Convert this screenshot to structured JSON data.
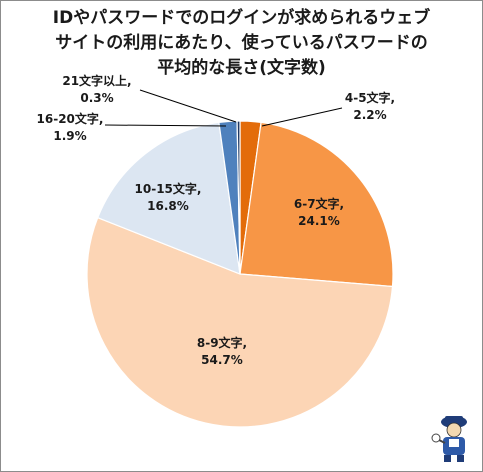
{
  "chart_data": {
    "type": "pie",
    "title_lines": [
      "IDやパスワードでのログインが求められるウェブ",
      "サイトの利用にあたり、使っているパスワードの",
      "平均的な長さ(文字数)"
    ],
    "slices": [
      {
        "name": "4-5文字",
        "value": 2.2,
        "value_label": "2.2%",
        "color": "#e36c0a"
      },
      {
        "name": "6-7文字",
        "value": 24.1,
        "value_label": "24.1%",
        "color": "#f79646"
      },
      {
        "name": "8-9文字",
        "value": 54.7,
        "value_label": "54.7%",
        "color": "#fcd5b5"
      },
      {
        "name": "10-15文字",
        "value": 16.8,
        "value_label": "16.8%",
        "color": "#dce6f2"
      },
      {
        "name": "16-20文字",
        "value": 1.9,
        "value_label": "1.9%",
        "color": "#4f81bd"
      },
      {
        "name": "21文字以上",
        "value": 0.3,
        "value_label": "0.3%",
        "color": "#1f3864"
      }
    ],
    "start_angle": "12 o'clock",
    "direction": "clockwise",
    "legend": "none"
  }
}
